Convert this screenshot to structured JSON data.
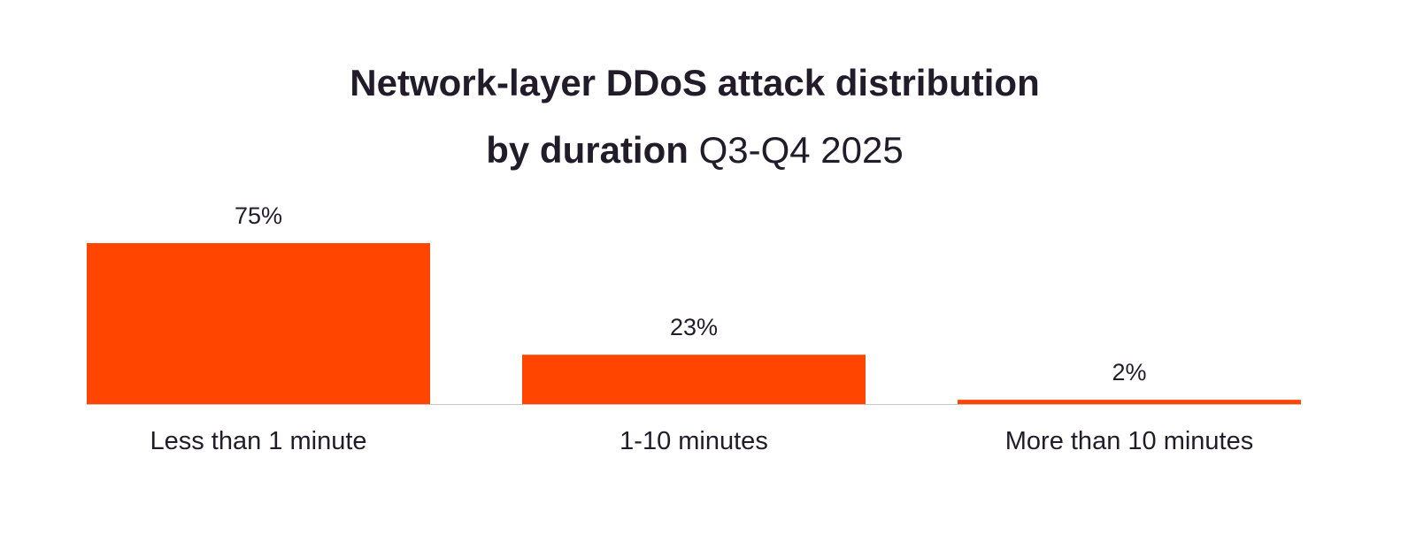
{
  "chart_data": {
    "type": "bar",
    "title_line1": "Network-layer DDoS attack distribution",
    "title_line2_bold": "by duration",
    "title_line2_regular": "Q3-Q4 2025",
    "categories": [
      "Less than 1 minute",
      "1-10 minutes",
      "More than 10 minutes"
    ],
    "values": [
      75,
      23,
      2
    ],
    "value_labels": [
      "75%",
      "23%",
      "2%"
    ],
    "unit": "%",
    "ylim": [
      0,
      75
    ],
    "grid": false,
    "legend": "none",
    "xlabel": "",
    "ylabel": "",
    "bar_color": "#ff4500",
    "axis_color": "#c8c8c8"
  }
}
